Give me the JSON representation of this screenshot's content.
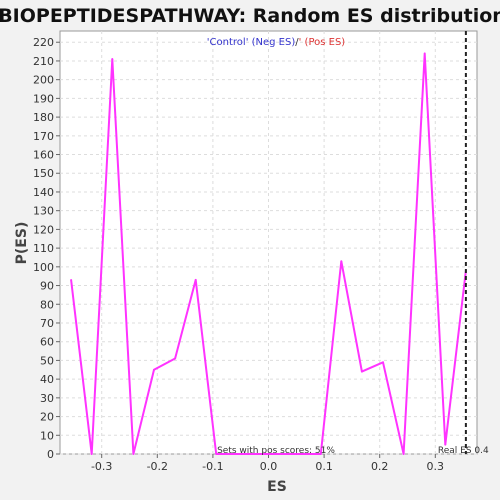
{
  "chart_data": {
    "type": "line",
    "title": "BIOPEPTIDESPATHWAY: Random ES distribution",
    "xlabel": "ES",
    "ylabel": "P(ES)",
    "xlim": [
      -0.375,
      0.375
    ],
    "ylim": [
      0,
      226
    ],
    "x_ticks": [
      -0.3,
      -0.2,
      -0.1,
      0.0,
      0.1,
      0.2,
      0.3
    ],
    "x_tick_labels": [
      "-0.3",
      "-0.2",
      "-0.1",
      "0.0",
      "0.1",
      "0.2",
      "0.3"
    ],
    "y_ticks": [
      0,
      10,
      20,
      30,
      40,
      50,
      60,
      70,
      80,
      90,
      100,
      110,
      120,
      130,
      140,
      150,
      160,
      170,
      180,
      190,
      200,
      210,
      220
    ],
    "grid": true,
    "legend": {
      "placement": "top-center",
      "neg_label": "'Control' (Neg ES)",
      "separator": "/",
      "pos_label": "' (Pos ES)",
      "neg_color": "#3333cc",
      "pos_color": "#dd3333"
    },
    "series": [
      {
        "color": "#ff33ff",
        "x": [
          -0.355,
          -0.318,
          -0.281,
          -0.243,
          -0.206,
          -0.168,
          -0.131,
          -0.094,
          -0.056,
          -0.019,
          0.019,
          0.056,
          0.094,
          0.131,
          0.168,
          0.206,
          0.243,
          0.281,
          0.318,
          0.355
        ],
        "y": [
          93,
          0,
          211,
          0,
          45,
          51,
          93,
          0,
          0,
          0,
          0,
          0,
          0,
          103,
          44,
          49,
          0,
          214,
          5,
          98
        ]
      }
    ],
    "real_es": {
      "value": 0.355,
      "label": "Real ES 0.4",
      "color": "#222222"
    },
    "annotation": "Sets with pos scores: 51%"
  }
}
